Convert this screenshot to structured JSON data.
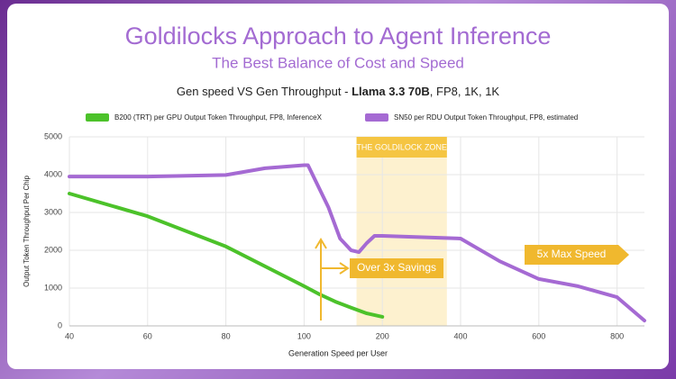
{
  "chart_data": {
    "type": "line",
    "title": "Goldilocks Approach to Agent Inference",
    "subtitle": "The Best Balance of Cost and Speed",
    "chart_title": [
      "Gen speed VS Gen Throughput - ",
      "Llama 3.3 70B",
      ", FP8, 1K, 1K"
    ],
    "x_label": "Generation Speed per User",
    "y_label": "Output Token Throughput Per Chip",
    "xlim": [
      40,
      870
    ],
    "xticks": [
      40,
      60,
      80,
      100,
      200,
      400,
      600,
      800
    ],
    "ylim": [
      0,
      5000
    ],
    "yticks": [
      0,
      1000,
      2000,
      3000,
      4000,
      5000
    ],
    "grid": true,
    "series": [
      {
        "name": "B200 (TRT) per GPU Output Token Throughput, FP8, InferenceX",
        "color": "#4cc22a",
        "x": [
          40,
          60,
          80,
          100,
          120,
          140,
          160,
          180,
          200
        ],
        "values": [
          3500,
          2900,
          2100,
          1050,
          830,
          640,
          480,
          330,
          240
        ]
      },
      {
        "name": "SN50 per RDU Output Token Throughput, FP8, estimated",
        "color": "#a56ad3",
        "x": [
          40,
          60,
          80,
          90,
          100,
          105,
          131,
          146,
          160,
          170,
          180,
          190,
          200,
          400,
          500,
          600,
          700,
          800,
          870
        ],
        "values": [
          3950,
          3950,
          3990,
          4170,
          4250,
          4250,
          3140,
          2310,
          2000,
          1950,
          2190,
          2380,
          2380,
          2310,
          1710,
          1240,
          1050,
          760,
          140
        ]
      }
    ],
    "zone": {
      "label": "THE GOLDILOCK ZONE",
      "range": [
        167,
        365
      ]
    },
    "callouts": [
      "Over 3x Savings",
      "5x Max Speed"
    ]
  }
}
